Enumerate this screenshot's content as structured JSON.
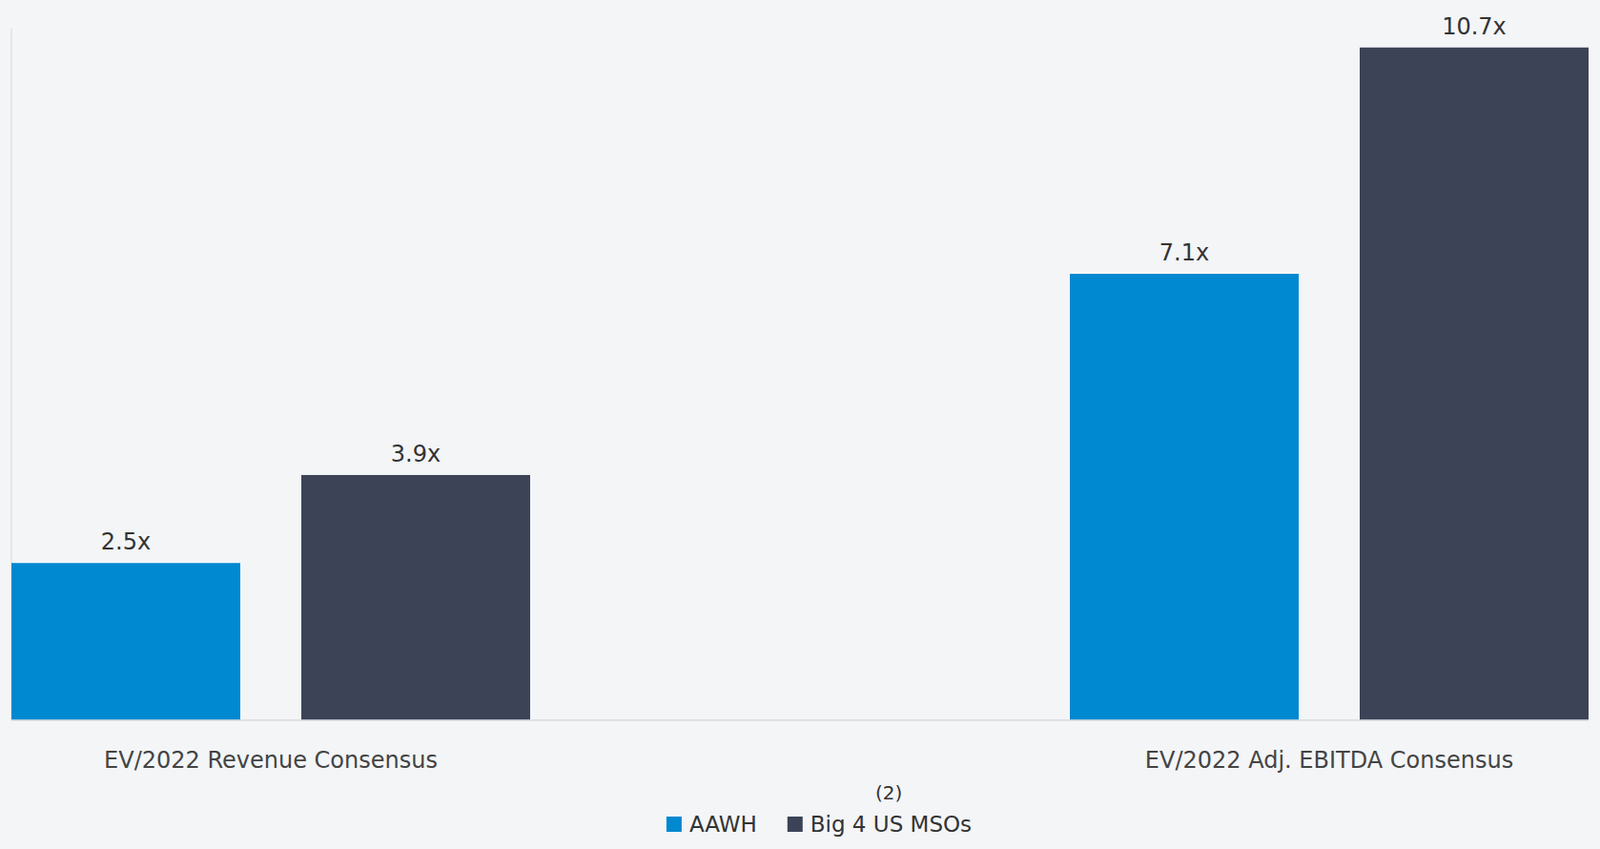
{
  "chart_data": {
    "type": "bar",
    "categories": [
      "EV/2022 Revenue Consensus",
      "EV/2022 Adj. EBITDA Consensus"
    ],
    "series": [
      {
        "name": "AAWH",
        "color": "#0088d1",
        "values": [
          2.5,
          7.1
        ],
        "value_labels": [
          "2.5x",
          "7.1x"
        ]
      },
      {
        "name": "Big 4 US MSOs",
        "color": "#3c4357",
        "values": [
          3.9,
          10.7
        ],
        "value_labels": [
          "3.9x",
          "10.7x"
        ]
      }
    ],
    "ylim": [
      0,
      11
    ],
    "yticks": [],
    "tick_labels": "x",
    "data_labels": true,
    "grid": false,
    "legend": "bottom",
    "annotations": [
      "(2)"
    ]
  }
}
